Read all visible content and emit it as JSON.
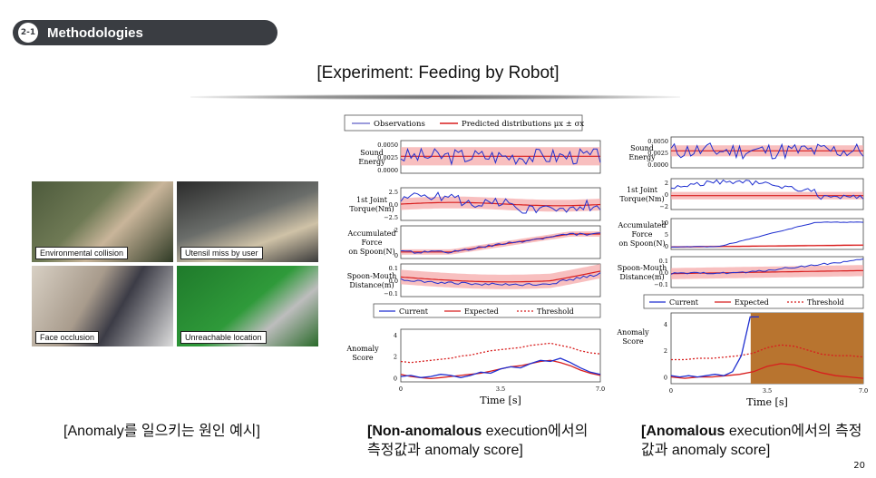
{
  "header": {
    "section_number": "2-1",
    "section_title": "Methodologies"
  },
  "slide_title": "[Experiment: Feeding by Robot]",
  "photos": [
    {
      "caption": "Environmental collision"
    },
    {
      "caption": "Utensil miss by user"
    },
    {
      "caption": "Face occlusion"
    },
    {
      "caption": "Unreachable location"
    }
  ],
  "captions": {
    "left": "[Anomaly를 일으키는 원인 예시]",
    "mid_bold": "[Non-anomalous",
    "mid_rest": " execution에서의 측정값과 anomaly score]",
    "right_bold": "[Anomalous",
    "right_rest": " execution에서의 측정값과 anomaly score]"
  },
  "page_number": "20",
  "colors": {
    "current": "#1f2fd0",
    "expected": "#d81e1e",
    "band": "#f6a9a9",
    "anomaly_region": "#b8742f"
  },
  "chart_data": [
    {
      "type": "line",
      "name": "non-anomalous",
      "top_legend": [
        "Observations",
        "Predicted distributions μx ± σx"
      ],
      "panels": [
        {
          "ylabel": [
            "Sound",
            "Energy"
          ],
          "yticks": [
            "0.0050",
            "0.0025",
            "0.0000"
          ]
        },
        {
          "ylabel": [
            "1st Joint",
            "Torque(Nm)"
          ],
          "yticks": [
            "2.5",
            "0.0",
            "−2.5"
          ]
        },
        {
          "ylabel": [
            "Accumulated",
            "Force",
            "on Spoon(N)"
          ],
          "yticks": [
            "2",
            "0"
          ]
        },
        {
          "ylabel": [
            "Spoon-Mouth",
            "Distance(m)"
          ],
          "yticks": [
            "0.1",
            "0.0",
            "−0.1"
          ]
        }
      ],
      "score_legend": [
        "Current",
        "Expected",
        "Threshold"
      ],
      "score_ylabel": [
        "Anomaly",
        "Score"
      ],
      "score_yticks": [
        "4",
        "2",
        "0"
      ],
      "xticks": [
        "0",
        "3.5",
        "7.0"
      ],
      "xlabel": "Time [s]",
      "score_current": [
        0.1,
        0.2,
        0.0,
        0.1,
        0.3,
        0.2,
        0.0,
        0.2,
        0.5,
        0.4,
        0.8,
        1.0,
        0.9,
        1.3,
        1.6,
        1.5,
        1.8,
        1.4,
        0.9,
        0.5,
        0.3
      ],
      "score_expected": [
        0.3,
        0.1,
        0.0,
        -0.1,
        0.0,
        0.1,
        0.2,
        0.3,
        0.4,
        0.6,
        0.8,
        1.0,
        1.1,
        1.3,
        1.5,
        1.6,
        1.4,
        1.1,
        0.7,
        0.4,
        0.2
      ],
      "score_threshold": [
        1.5,
        1.4,
        1.5,
        1.6,
        1.7,
        1.8,
        2.0,
        2.1,
        2.3,
        2.5,
        2.6,
        2.7,
        2.8,
        3.0,
        3.1,
        3.2,
        3.0,
        2.8,
        2.5,
        2.3,
        2.2
      ]
    },
    {
      "type": "line",
      "name": "anomalous",
      "panels": [
        {
          "ylabel": [
            "Sound",
            "Energy"
          ],
          "yticks": [
            "0.0050",
            "0.0025",
            "0.0000"
          ]
        },
        {
          "ylabel": [
            "1st Joint",
            "Torque(Nm)"
          ],
          "yticks": [
            "2",
            "0",
            "−2"
          ]
        },
        {
          "ylabel": [
            "Accumulated",
            "Force",
            "on Spoon(N)"
          ],
          "yticks": [
            "10",
            "5",
            "0"
          ]
        },
        {
          "ylabel": [
            "Spoon-Mouth",
            "Distance(m)"
          ],
          "yticks": [
            "0.1",
            "0.0",
            "−0.1"
          ]
        }
      ],
      "score_legend": [
        "Current",
        "Expected",
        "Threshold"
      ],
      "score_ylabel": [
        "Anomaly",
        "Score"
      ],
      "score_yticks": [
        "4",
        "2",
        "0"
      ],
      "xticks": [
        "0",
        "3.5",
        "7.0"
      ],
      "xlabel": "Time [s]",
      "anomaly_region_x": [
        2.9,
        7.0
      ],
      "score_current": [
        0.1,
        0.0,
        0.1,
        0.0,
        0.1,
        0.2,
        0.1,
        0.4,
        1.6,
        4.5,
        4.5
      ],
      "score_expected": [
        0.0,
        -0.1,
        0.0,
        0.0,
        0.1,
        0.2,
        0.4,
        0.8,
        1.0,
        0.9,
        0.6,
        0.3,
        0.1,
        0.0,
        -0.1
      ],
      "score_threshold": [
        1.3,
        1.3,
        1.4,
        1.4,
        1.5,
        1.6,
        1.8,
        2.2,
        2.4,
        2.3,
        2.0,
        1.7,
        1.6,
        1.6,
        1.5
      ]
    }
  ]
}
